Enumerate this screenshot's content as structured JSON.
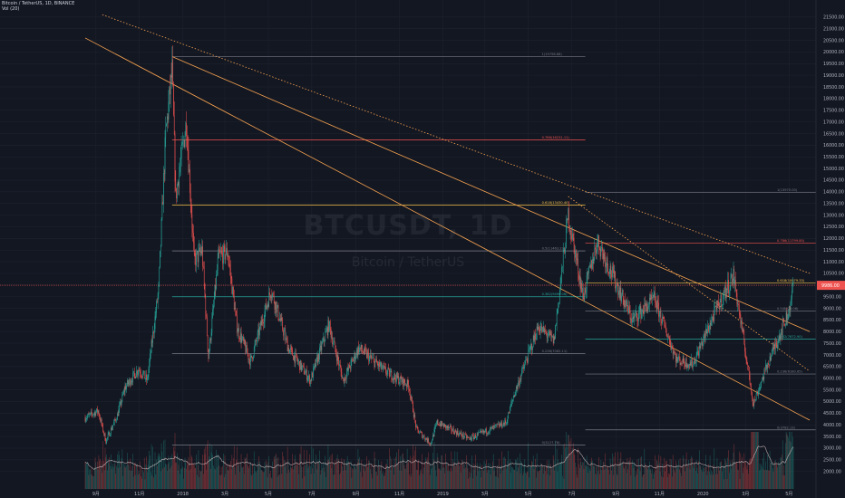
{
  "header": {
    "line1": "Bitcoin / TetherUS, 1D, BINANCE",
    "line2": "Vol (20)"
  },
  "watermark": {
    "symbol": "BTCUSDT, 1D",
    "name": "Bitcoin / TetherUS"
  },
  "colors": {
    "up": "#26a69a",
    "down": "#ef5350",
    "background": "#131722",
    "grid": "#1e222d",
    "trend": "#f7a350",
    "fib_red": "#ef5350",
    "fib_yellow": "#f7c34a",
    "fib_gray": "#787b86",
    "fib_green": "#26a69a",
    "price_line": "#ef5350",
    "volume_ma": "#e0c9c9"
  },
  "chart_data": {
    "type": "candlestick",
    "pair": "BTCUSDT",
    "interval": "1D",
    "exchange": "BINANCE",
    "ylim": [
      1500,
      21900
    ],
    "y_ticks": [
      2000,
      2500,
      3000,
      3500,
      4000,
      4500,
      5000,
      5500,
      6000,
      6500,
      7000,
      7500,
      8000,
      8500,
      9000,
      9500,
      10000,
      10500,
      11000,
      11500,
      12000,
      12500,
      13000,
      13500,
      14000,
      14500,
      15000,
      15500,
      16000,
      16500,
      17000,
      17500,
      18000,
      18500,
      19000,
      19500,
      20000,
      20500,
      21000,
      21500
    ],
    "x_tick_labels": [
      "9月",
      "11月",
      "2018",
      "3月",
      "5月",
      "7月",
      "9月",
      "11月",
      "2019",
      "3月",
      "5月",
      "7月",
      "9月",
      "11月",
      "2020",
      "3月",
      "5月"
    ],
    "x_tick_dates": [
      "2017-09-01",
      "2017-11-01",
      "2018-01-01",
      "2018-03-01",
      "2018-05-01",
      "2018-07-01",
      "2018-09-01",
      "2018-11-01",
      "2019-01-01",
      "2019-03-01",
      "2019-05-01",
      "2019-07-01",
      "2019-09-01",
      "2019-11-01",
      "2020-01-01",
      "2020-03-01",
      "2020-05-01"
    ],
    "price_path": [
      [
        "2017-08-17",
        4300
      ],
      [
        "2017-09-04",
        4600
      ],
      [
        "2017-09-15",
        3300
      ],
      [
        "2017-10-01",
        4400
      ],
      [
        "2017-10-12",
        5600
      ],
      [
        "2017-10-31",
        6400
      ],
      [
        "2017-11-12",
        5900
      ],
      [
        "2017-11-28",
        9800
      ],
      [
        "2017-12-08",
        16500
      ],
      [
        "2017-12-17",
        19200
      ],
      [
        "2017-12-22",
        13800
      ],
      [
        "2018-01-06",
        17000
      ],
      [
        "2018-01-17",
        11000
      ],
      [
        "2018-01-28",
        11500
      ],
      [
        "2018-02-06",
        6900
      ],
      [
        "2018-02-20",
        11200
      ],
      [
        "2018-03-05",
        11400
      ],
      [
        "2018-03-18",
        8200
      ],
      [
        "2018-04-06",
        6700
      ],
      [
        "2018-05-05",
        9800
      ],
      [
        "2018-05-29",
        7300
      ],
      [
        "2018-06-29",
        5900
      ],
      [
        "2018-07-25",
        8300
      ],
      [
        "2018-08-14",
        5900
      ],
      [
        "2018-09-05",
        7300
      ],
      [
        "2018-10-12",
        6300
      ],
      [
        "2018-11-14",
        5700
      ],
      [
        "2018-11-25",
        3800
      ],
      [
        "2018-12-15",
        3200
      ],
      [
        "2018-12-24",
        4100
      ],
      [
        "2019-02-07",
        3400
      ],
      [
        "2019-03-31",
        4100
      ],
      [
        "2019-04-10",
        5200
      ],
      [
        "2019-05-15",
        8200
      ],
      [
        "2019-06-06",
        7600
      ],
      [
        "2019-06-26",
        13000
      ],
      [
        "2019-07-17",
        9500
      ],
      [
        "2019-08-06",
        11900
      ],
      [
        "2019-09-24",
        8500
      ],
      [
        "2019-10-25",
        9400
      ],
      [
        "2019-11-25",
        6800
      ],
      [
        "2019-12-18",
        6600
      ],
      [
        "2020-01-19",
        8900
      ],
      [
        "2020-02-13",
        10400
      ],
      [
        "2020-03-12",
        4900
      ],
      [
        "2020-04-02",
        6700
      ],
      [
        "2020-04-30",
        8800
      ],
      [
        "2020-05-07",
        9986
      ]
    ],
    "last_price": 9986,
    "fib_from_top": {
      "levels": [
        {
          "label": "1(19798.68)",
          "price": 19798.68,
          "color": "gray"
        },
        {
          "label": "0.786(16231.11)",
          "price": 16231.11,
          "color": "red"
        },
        {
          "label": "0.618(13430.40)",
          "price": 13430.4,
          "color": "yellow"
        },
        {
          "label": "0.5(11463.23)",
          "price": 11463.23,
          "color": "gray"
        },
        {
          "label": "0.382(9496.06)",
          "price": 9496.06,
          "color": "green"
        },
        {
          "label": "0.236(7062.11)",
          "price": 7062.11,
          "color": "gray"
        },
        {
          "label": "0(3127.78)",
          "price": 3127.78,
          "color": "gray"
        }
      ]
    },
    "fib_from_2019": {
      "levels": [
        {
          "label": "1(13970.00)",
          "price": 13970.0,
          "color": "gray"
        },
        {
          "label": "0.786(11799.80)",
          "price": 11799.8,
          "color": "red"
        },
        {
          "label": "0.618(10079.33)",
          "price": 10079.33,
          "color": "yellow"
        },
        {
          "label": "0.5(8876.06)",
          "price": 8876.06,
          "color": "gray"
        },
        {
          "label": "0.382(7672.90)",
          "price": 7672.9,
          "color": "green"
        },
        {
          "label": "0.236(6180.65)",
          "price": 6180.65,
          "color": "gray"
        },
        {
          "label": "0(3782.13)",
          "price": 3782.13,
          "color": "gray"
        }
      ]
    },
    "trendlines": [
      {
        "style": "solid",
        "from": [
          "2017-08-17",
          20600
        ],
        "to": [
          "2020-05-30",
          4200
        ]
      },
      {
        "style": "solid",
        "from": [
          "2017-12-17",
          19800
        ],
        "to": [
          "2020-05-30",
          8000
        ]
      },
      {
        "style": "dotted",
        "from": [
          "2017-09-10",
          21600
        ],
        "to": [
          "2020-05-30",
          10500
        ]
      },
      {
        "style": "dotted",
        "from": [
          "2019-06-26",
          13800
        ],
        "to": [
          "2020-05-30",
          6300
        ]
      }
    ],
    "volume": {
      "ymax": 110000
    }
  }
}
